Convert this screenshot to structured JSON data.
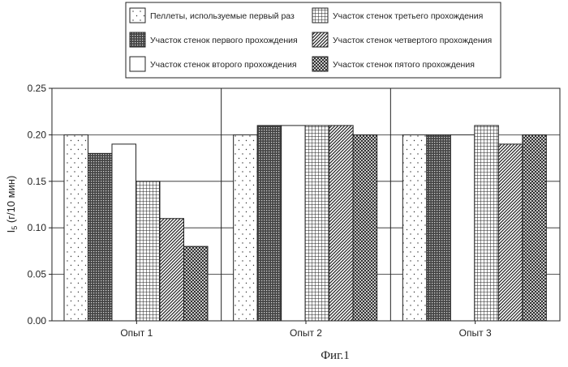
{
  "chart_data": {
    "type": "bar",
    "categories": [
      "Опыт 1",
      "Опыт 2",
      "Опыт 3"
    ],
    "ylabel": "I5 (г/10 мин)",
    "ylim": [
      0,
      0.25
    ],
    "yticks": [
      "0.00",
      "0.05",
      "0.10",
      "0.15",
      "0.20",
      "0.25"
    ],
    "grid": true,
    "legend_placement": "top",
    "caption": "Фиг.1",
    "series": [
      {
        "name": "Пеллеты, используемые первый раз",
        "pattern": "dots",
        "values": [
          0.2,
          0.2,
          0.2
        ]
      },
      {
        "name": "Участок стенок первого прохождения",
        "pattern": "dense-grid",
        "values": [
          0.18,
          0.21,
          0.2
        ]
      },
      {
        "name": "Участок стенок второго прохождения",
        "pattern": "white",
        "values": [
          0.19,
          0.21,
          0.2
        ]
      },
      {
        "name": "Участок стенок третьего прохождения",
        "pattern": "grid",
        "values": [
          0.15,
          0.21,
          0.21
        ]
      },
      {
        "name": "Участок стенок четвертого прохождения",
        "pattern": "diagonal",
        "values": [
          0.11,
          0.21,
          0.19
        ]
      },
      {
        "name": "Участок стенок пятого прохождения",
        "pattern": "crosshatch",
        "values": [
          0.08,
          0.2,
          0.2
        ]
      }
    ]
  }
}
